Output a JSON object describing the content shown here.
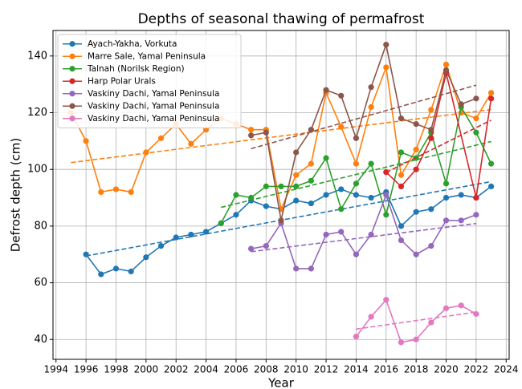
{
  "chart_data": {
    "type": "line",
    "title": "Depths of seasonal thawing of permafrost",
    "xlabel": "Year",
    "ylabel": "Defrost depth (cm)",
    "xlim": [
      1993.8,
      2024.2
    ],
    "ylim": [
      33,
      149
    ],
    "xticks": [
      1994,
      1996,
      1998,
      2000,
      2002,
      2004,
      2006,
      2008,
      2010,
      2012,
      2014,
      2016,
      2018,
      2020,
      2022,
      2024
    ],
    "yticks": [
      40,
      60,
      80,
      100,
      120,
      140
    ],
    "grid": true,
    "legend": "upper left",
    "trend_lines": true,
    "series": [
      {
        "name": "Ayach-Yakha, Vorkuta",
        "color": "#1f77b4",
        "x": [
          1996,
          1997,
          1998,
          1999,
          2000,
          2001,
          2002,
          2003,
          2004,
          2005,
          2006,
          2007,
          2008,
          2009,
          2010,
          2011,
          2012,
          2013,
          2014,
          2015,
          2016,
          2017,
          2018,
          2019,
          2020,
          2021,
          2022,
          2023
        ],
        "values": [
          70,
          63,
          65,
          64,
          69,
          73,
          76,
          77,
          78,
          81,
          84,
          89,
          87,
          86,
          89,
          88,
          91,
          93,
          91,
          90,
          92,
          80,
          85,
          86,
          90,
          91,
          90,
          94
        ]
      },
      {
        "name": "Marre Sale, Yamal Peninsula",
        "color": "#ff7f0e",
        "x": [
          1995,
          1996,
          1997,
          1998,
          1999,
          2000,
          2001,
          2002,
          2003,
          2004,
          2005,
          2006,
          2007,
          2008,
          2009,
          2010,
          2011,
          2012,
          2013,
          2014,
          2015,
          2016,
          2017,
          2018,
          2019,
          2020,
          2021,
          2022,
          2023
        ],
        "values": [
          120,
          110,
          92,
          93,
          92,
          106,
          111,
          116,
          109,
          114,
          118,
          116,
          114,
          114,
          86,
          98,
          102,
          127,
          115,
          102,
          122,
          136,
          98,
          107,
          121,
          137,
          120,
          118,
          127
        ]
      },
      {
        "name": "Talnah (Norilsk Region)",
        "color": "#2ca02c",
        "x": [
          2005,
          2006,
          2007,
          2008,
          2009,
          2010,
          2011,
          2012,
          2013,
          2014,
          2015,
          2016,
          2017,
          2018,
          2019,
          2020,
          2021,
          2022,
          2023
        ],
        "values": [
          81,
          91,
          90,
          94,
          94,
          94,
          96,
          104,
          86,
          95,
          102,
          84,
          106,
          104,
          113,
          95,
          122,
          113,
          102
        ]
      },
      {
        "name": "Harp Polar Urals",
        "color": "#d62728",
        "x": [
          2016,
          2017,
          2018,
          2019,
          2020,
          2022,
          2023
        ],
        "values": [
          99,
          94,
          100,
          111,
          134,
          90,
          125
        ]
      },
      {
        "name": "Vaskiny Dachi, Yamal Peninsula",
        "color": "#9467bd",
        "x": [
          2007,
          2008,
          2009,
          2010,
          2011,
          2012,
          2013,
          2014,
          2015,
          2016,
          2017,
          2018,
          2019,
          2020,
          2021,
          2022
        ],
        "values": [
          72,
          73,
          81,
          65,
          65,
          77,
          78,
          70,
          77,
          91,
          75,
          70,
          73,
          82,
          82,
          84
        ]
      },
      {
        "name": "Vaskiny Dachi, Yamal Peninsula",
        "color": "#8c564b",
        "x": [
          2007,
          2008,
          2009,
          2010,
          2011,
          2012,
          2013,
          2014,
          2015,
          2016,
          2017,
          2018,
          2019,
          2020,
          2021,
          2022
        ],
        "values": [
          112,
          113,
          82,
          106,
          114,
          128,
          126,
          111,
          129,
          144,
          118,
          116,
          114,
          135,
          123,
          125
        ]
      },
      {
        "name": "Vaskiny Dachi, Yamal Peninsula",
        "color": "#e377c2",
        "x": [
          2014,
          2015,
          2016,
          2017,
          2018,
          2019,
          2020,
          2021,
          2022
        ],
        "values": [
          41,
          48,
          54,
          39,
          40,
          46,
          51,
          52,
          49
        ]
      }
    ]
  }
}
